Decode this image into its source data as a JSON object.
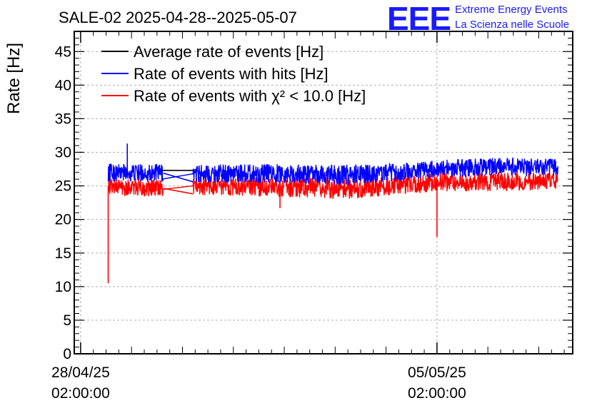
{
  "chart_data": {
    "type": "line",
    "title": "SALE-02 2025-04-28--2025-05-07",
    "ylabel": "Rate [Hz]",
    "xlabel": "",
    "ylim": [
      0,
      48
    ],
    "yticks": [
      0,
      5,
      10,
      15,
      20,
      25,
      30,
      35,
      40,
      45
    ],
    "xlim": [
      "2025-04-27T23:00:00",
      "2025-05-07T18:00:00"
    ],
    "xticks": [
      {
        "date": "2025-04-28T02:00:00",
        "label_line1": "28/04/25",
        "label_line2": "02:00:00"
      },
      {
        "date": "2025-05-05T02:00:00",
        "label_line1": "05/05/25",
        "label_line2": "02:00:00"
      }
    ],
    "grid": true,
    "legend_position": "top-left",
    "series": [
      {
        "name": "Average rate of events [Hz]",
        "color": "#000000",
        "x": [
          "2025-04-28T15:00:00",
          "2025-04-29T16:00:00",
          "2025-04-29T17:00:00",
          "2025-04-30T07:00:00",
          "2025-05-01T06:00:00",
          "2025-05-02T06:00:00",
          "2025-05-03T06:00:00",
          "2025-05-04T06:00:00",
          "2025-05-05T06:00:00",
          "2025-05-06T06:00:00",
          "2025-05-07T11:00:00"
        ],
        "y": [
          27.2,
          27.3,
          27.3,
          27.3,
          27.2,
          27.0,
          26.9,
          27.3,
          27.7,
          27.8,
          27.9
        ]
      },
      {
        "name": "Rate of events with hits [Hz]",
        "color": "#0000ff",
        "x": [
          "2025-04-28T15:00:00",
          "2025-04-29T16:00:00",
          "2025-04-30T07:00:00",
          "2025-05-01T06:00:00",
          "2025-05-02T06:00:00",
          "2025-05-03T06:00:00",
          "2025-05-04T06:00:00",
          "2025-05-05T06:00:00",
          "2025-05-06T06:00:00",
          "2025-05-07T11:00:00"
        ],
        "y": [
          27.0,
          26.9,
          26.8,
          26.9,
          26.8,
          26.6,
          27.0,
          27.6,
          27.8,
          27.7
        ],
        "band": [
          1.4,
          1.3,
          1.3,
          1.4,
          1.4,
          1.5,
          1.3,
          1.3,
          1.4,
          1.3
        ],
        "spikes": [
          {
            "x": "2025-04-29T00:00:00",
            "y": 31.3
          }
        ]
      },
      {
        "name": "Rate of events with χ² < 10.0 [Hz]",
        "color": "#ff0000",
        "x": [
          "2025-04-28T15:00:00",
          "2025-04-29T16:00:00",
          "2025-04-30T07:00:00",
          "2025-05-01T06:00:00",
          "2025-05-02T06:00:00",
          "2025-05-03T06:00:00",
          "2025-05-04T06:00:00",
          "2025-05-05T06:00:00",
          "2025-05-06T06:00:00",
          "2025-05-07T11:00:00"
        ],
        "y": [
          25.0,
          24.6,
          25.0,
          24.9,
          24.8,
          24.6,
          25.0,
          25.6,
          25.6,
          25.7
        ],
        "band": [
          1.3,
          1.3,
          1.4,
          1.4,
          1.5,
          1.6,
          1.4,
          1.4,
          1.4,
          1.3
        ],
        "spikes": [
          {
            "x": "2025-04-28T15:00:00",
            "y": 10.5
          },
          {
            "x": "2025-05-02T00:00:00",
            "y": 21.7
          },
          {
            "x": "2025-05-05T02:00:00",
            "y": 17.4
          }
        ]
      }
    ]
  },
  "logo": {
    "mark": "EEE",
    "line1": "Extreme Energy Events",
    "line2": "La Scienza nelle Scuole"
  }
}
